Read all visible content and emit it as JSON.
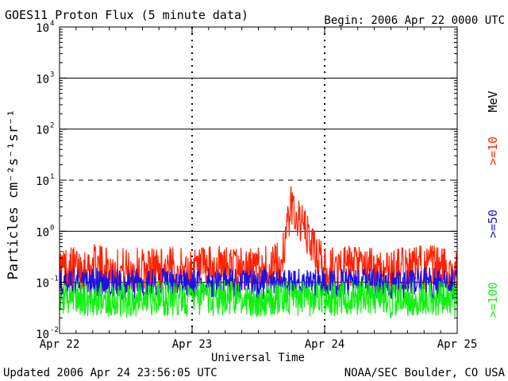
{
  "header": {
    "title": "GOES11 Proton Flux (5 minute data)",
    "begin": "Begin: 2006 Apr 22 0000 UTC"
  },
  "footer": {
    "updated": "Updated 2006 Apr 24 23:56:05 UTC",
    "credit": "NOAA/SEC Boulder, CO USA"
  },
  "colors": {
    "ge10": "#ff2000",
    "ge50": "#2010e0",
    "ge100": "#10f010",
    "grid": "#000000",
    "background": "#ffffff"
  },
  "chart_data": {
    "type": "line",
    "title": "GOES11 Proton Flux (5 minute data)",
    "xlabel": "Universal Time",
    "ylabel": "Particles cm⁻²s⁻¹sr⁻¹",
    "yscale": "log",
    "ylim": [
      0.01,
      10000
    ],
    "x_tick_labels": [
      "Apr 22",
      "Apr 23",
      "Apr 24",
      "Apr 25"
    ],
    "y_tick_labels": [
      {
        "base": "10",
        "exp": "-2"
      },
      {
        "base": "10",
        "exp": "-1"
      },
      {
        "base": "10",
        "exp": "0"
      },
      {
        "base": "10",
        "exp": "1"
      },
      {
        "base": "10",
        "exp": "2"
      },
      {
        "base": "10",
        "exp": "3"
      },
      {
        "base": "10",
        "exp": "4"
      }
    ],
    "unit_label": "MeV",
    "grid": "solid at 10^-1, 10^0, 10^2, 10^3; dashed at 10^1; dashed vertical at day boundaries",
    "series": [
      {
        "name": ">=10",
        "color": "#ff2000",
        "x_hours": [
          0,
          6,
          12,
          18,
          24,
          30,
          36,
          40,
          42,
          48,
          54,
          60,
          66,
          72
        ],
        "values": [
          0.18,
          0.2,
          0.17,
          0.19,
          0.16,
          0.2,
          0.18,
          0.22,
          3.2,
          0.18,
          0.19,
          0.17,
          0.2,
          0.18
        ]
      },
      {
        "name": ">=50",
        "color": "#2010e0",
        "x_hours": [
          0,
          6,
          12,
          18,
          24,
          30,
          36,
          42,
          48,
          54,
          60,
          66,
          72
        ],
        "values": [
          0.09,
          0.1,
          0.09,
          0.1,
          0.09,
          0.1,
          0.09,
          0.1,
          0.09,
          0.1,
          0.09,
          0.1,
          0.09
        ]
      },
      {
        "name": ">=100",
        "color": "#10f010",
        "x_hours": [
          0,
          6,
          12,
          18,
          24,
          30,
          36,
          42,
          48,
          54,
          60,
          66,
          72
        ],
        "values": [
          0.045,
          0.05,
          0.045,
          0.05,
          0.045,
          0.05,
          0.045,
          0.05,
          0.045,
          0.05,
          0.045,
          0.05,
          0.045
        ]
      }
    ]
  }
}
